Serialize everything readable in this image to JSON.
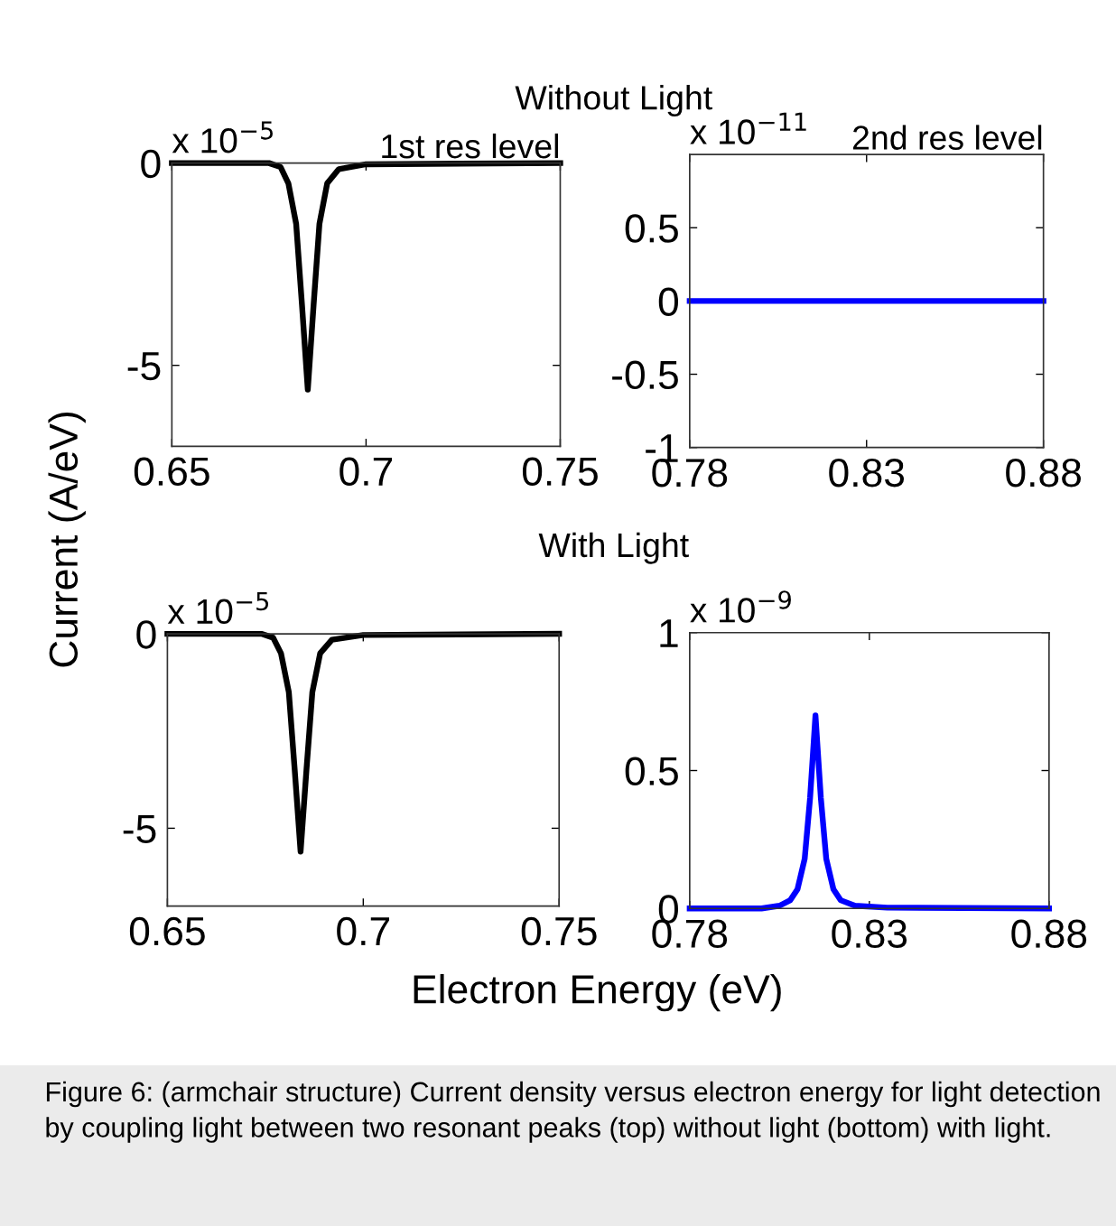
{
  "chart_data": [
    {
      "type": "line",
      "title": "1st res level",
      "subtitle": "Without Light",
      "ylabel": "Current (A/eV)",
      "annotations": [
        "x 10$^{−5}$"
      ],
      "x": [
        0.65,
        0.675,
        0.678,
        0.68,
        0.682,
        0.6835,
        0.685,
        0.6865,
        0.688,
        0.69,
        0.693,
        0.7,
        0.75
      ],
      "series": [
        {
          "color": "#000000",
          "values": [
            0,
            0,
            -0.1,
            -0.5,
            -1.5,
            -3.5,
            -5.6,
            -3.5,
            -1.5,
            -0.5,
            -0.15,
            -0.03,
            0
          ]
        }
      ],
      "xlim": [
        0.65,
        0.75
      ],
      "xticks": [
        0.65,
        0.7,
        0.75
      ],
      "ylim": [
        -7,
        0
      ],
      "yticks": [
        -5,
        0
      ],
      "grid": false
    },
    {
      "type": "line",
      "title": "2nd res level",
      "annotations": [
        "x 10$^{−11}$"
      ],
      "x": [
        0.78,
        0.88
      ],
      "series": [
        {
          "color": "#0000ff",
          "values": [
            0,
            0
          ]
        }
      ],
      "xlim": [
        0.78,
        0.88
      ],
      "xticks": [
        0.78,
        0.83,
        0.88
      ],
      "ylim": [
        -1,
        1
      ],
      "yticks": [
        -1,
        -0.5,
        0,
        0.5
      ],
      "grid": false
    },
    {
      "type": "line",
      "subtitle": "With Light",
      "xlabel": "Electron Energy (eV)",
      "annotations": [
        "x 10$^{−5}$"
      ],
      "x": [
        0.65,
        0.674,
        0.677,
        0.679,
        0.681,
        0.6825,
        0.684,
        0.6855,
        0.687,
        0.689,
        0.692,
        0.7,
        0.75
      ],
      "series": [
        {
          "color": "#000000",
          "values": [
            0,
            0,
            -0.1,
            -0.5,
            -1.5,
            -3.5,
            -5.6,
            -3.5,
            -1.5,
            -0.5,
            -0.15,
            -0.03,
            0
          ]
        }
      ],
      "xlim": [
        0.65,
        0.75
      ],
      "xticks": [
        0.65,
        0.7,
        0.75
      ],
      "ylim": [
        -7,
        0
      ],
      "yticks": [
        -5,
        0
      ],
      "grid": false
    },
    {
      "type": "line",
      "annotations": [
        "x 10$^{−9}$",
        "Figure 6: (armchair structure) Current density versus electron energy for light detection by coupling light between two resonant peaks (top) without light (bottom) with light."
      ],
      "x": [
        0.78,
        0.8,
        0.805,
        0.808,
        0.81,
        0.812,
        0.8135,
        0.815,
        0.8165,
        0.818,
        0.82,
        0.822,
        0.826,
        0.835,
        0.88
      ],
      "series": [
        {
          "color": "#0000ff",
          "values": [
            0,
            0,
            0.01,
            0.03,
            0.07,
            0.18,
            0.4,
            0.7,
            0.4,
            0.18,
            0.07,
            0.03,
            0.01,
            0.003,
            0
          ]
        }
      ],
      "xlim": [
        0.78,
        0.88
      ],
      "xticks": [
        0.78,
        0.83,
        0.88
      ],
      "ylim": [
        0,
        1
      ],
      "yticks": [
        0,
        0.5,
        1
      ],
      "grid": false
    }
  ]
}
